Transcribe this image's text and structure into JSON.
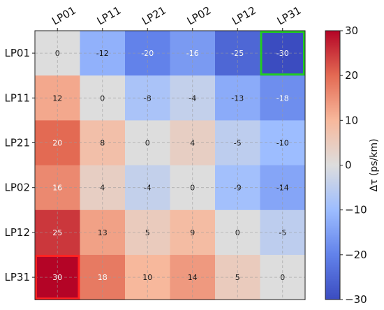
{
  "chart_data": {
    "type": "heatmap",
    "row_labels": [
      "LP01",
      "LP11",
      "LP21",
      "LP02",
      "LP12",
      "LP31"
    ],
    "col_labels": [
      "LP01",
      "LP11",
      "LP21",
      "LP02",
      "LP12",
      "LP31"
    ],
    "values": [
      [
        0,
        -12,
        -20,
        -16,
        -25,
        -30
      ],
      [
        12,
        0,
        -8,
        -4,
        -13,
        -18
      ],
      [
        20,
        8,
        0,
        4,
        -5,
        -10
      ],
      [
        16,
        4,
        -4,
        0,
        -9,
        -14
      ],
      [
        25,
        13,
        5,
        9,
        0,
        -5
      ],
      [
        30,
        18,
        10,
        14,
        5,
        0
      ]
    ],
    "cell_labels": [
      [
        "0",
        "-12",
        "-20",
        "-16",
        "-25",
        "-30"
      ],
      [
        "12",
        "0",
        "-8",
        "-4",
        "-13",
        "-18"
      ],
      [
        "20",
        "8",
        "0",
        "4",
        "-5",
        "-10"
      ],
      [
        "16",
        "4",
        "-4",
        "0",
        "-9",
        "-14"
      ],
      [
        "25",
        "13",
        "5",
        "9",
        "0",
        "-5"
      ],
      [
        "30",
        "18",
        "10",
        "14",
        "5",
        "0"
      ]
    ],
    "colormap": "coolwarm",
    "vmin": -30,
    "vmax": 30,
    "colorbar": {
      "label": "Δτ (ps/km)",
      "ticks": [
        30,
        20,
        10,
        0,
        -10,
        -20,
        -30
      ],
      "tick_labels": [
        "30",
        "20",
        "10",
        "0",
        "−10",
        "−20",
        "−30"
      ]
    },
    "grid": true,
    "x_tick_position": "top",
    "highlights": [
      {
        "row": 0,
        "col": 5,
        "color": "#22cc22"
      },
      {
        "row": 5,
        "col": 0,
        "color": "#ff2222"
      }
    ]
  }
}
